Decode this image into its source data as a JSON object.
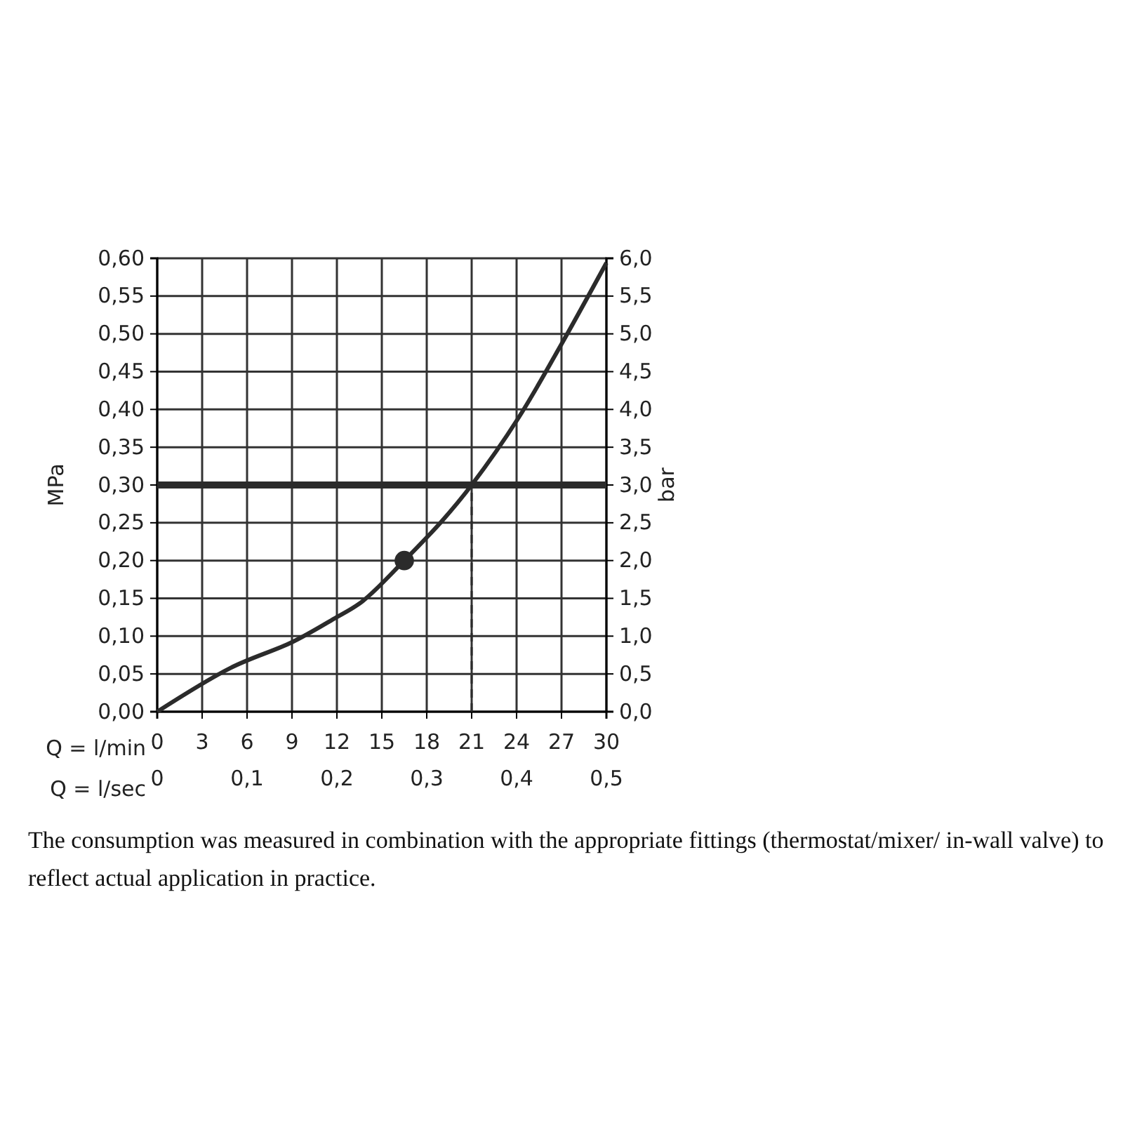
{
  "chart_data": {
    "type": "line",
    "xlabel": "Q = l/min",
    "x2label": "Q = l/sec",
    "ylabel": "MPa",
    "y2label": "bar",
    "xlim": [
      0,
      30
    ],
    "xticks": [
      0,
      3,
      6,
      9,
      12,
      15,
      18,
      21,
      24,
      27,
      30
    ],
    "x2lim": [
      0,
      0.5
    ],
    "x2ticks": [
      0,
      {
        "value": 0.1,
        "label": "0,1"
      },
      {
        "value": 0.2,
        "label": "0,2"
      },
      {
        "value": 0.3,
        "label": "0,3"
      },
      {
        "value": 0.4,
        "label": "0,4"
      },
      {
        "value": 0.5,
        "label": "0,5"
      }
    ],
    "ylim": [
      0,
      0.6
    ],
    "yticks": [
      {
        "value": 0,
        "label": "0,00"
      },
      {
        "value": 0.05,
        "label": "0,05"
      },
      {
        "value": 0.1,
        "label": "0,10"
      },
      {
        "value": 0.15,
        "label": "0,15"
      },
      {
        "value": 0.2,
        "label": "0,20"
      },
      {
        "value": 0.25,
        "label": "0,25"
      },
      {
        "value": 0.3,
        "label": "0,30"
      },
      {
        "value": 0.35,
        "label": "0,35"
      },
      {
        "value": 0.4,
        "label": "0,40"
      },
      {
        "value": 0.45,
        "label": "0,45"
      },
      {
        "value": 0.5,
        "label": "0,50"
      },
      {
        "value": 0.55,
        "label": "0,55"
      },
      {
        "value": 0.6,
        "label": "0,60"
      }
    ],
    "y2lim": [
      0,
      6
    ],
    "y2ticks": [
      {
        "value": 0,
        "label": "0,0"
      },
      {
        "value": 0.5,
        "label": "0,5"
      },
      {
        "value": 1,
        "label": "1,0"
      },
      {
        "value": 1.5,
        "label": "1,5"
      },
      {
        "value": 2,
        "label": "2,0"
      },
      {
        "value": 2.5,
        "label": "2,5"
      },
      {
        "value": 3,
        "label": "3,0"
      },
      {
        "value": 3.5,
        "label": "3,5"
      },
      {
        "value": 4,
        "label": "4,0"
      },
      {
        "value": 4.5,
        "label": "4,5"
      },
      {
        "value": 5,
        "label": "5,0"
      },
      {
        "value": 5.5,
        "label": "5,5"
      },
      {
        "value": 6,
        "label": "6,0"
      }
    ],
    "grid": true,
    "series": [
      {
        "color": "#2b2b2b",
        "marker": "none",
        "line_style": "solid",
        "x": [
          0,
          4.9,
          9,
          11.8,
          13.7,
          16.5,
          19,
          21,
          24.1,
          26.9,
          30
        ],
        "values": [
          0,
          0.058,
          0.092,
          0.123,
          0.146,
          0.2,
          0.252,
          0.3,
          0.388,
          0.483,
          0.594
        ]
      },
      {
        "type": "scatter",
        "color": "#2b2b2b",
        "marker": "circle",
        "x": [
          16.5
        ],
        "values": [
          0.2
        ]
      }
    ],
    "ref_lines": [
      {
        "axis": "y",
        "value": 0.3,
        "color": "#2b2b2b",
        "line_style": "solid"
      },
      {
        "axis": "x",
        "value": 21,
        "color": "#2b2b2b",
        "line_style": "dashed"
      }
    ],
    "annotations": [
      "The consumption was measured in combination with the appropriate fittings (thermostat/mixer/ in-wall valve) to reflect actual application in practice."
    ]
  }
}
